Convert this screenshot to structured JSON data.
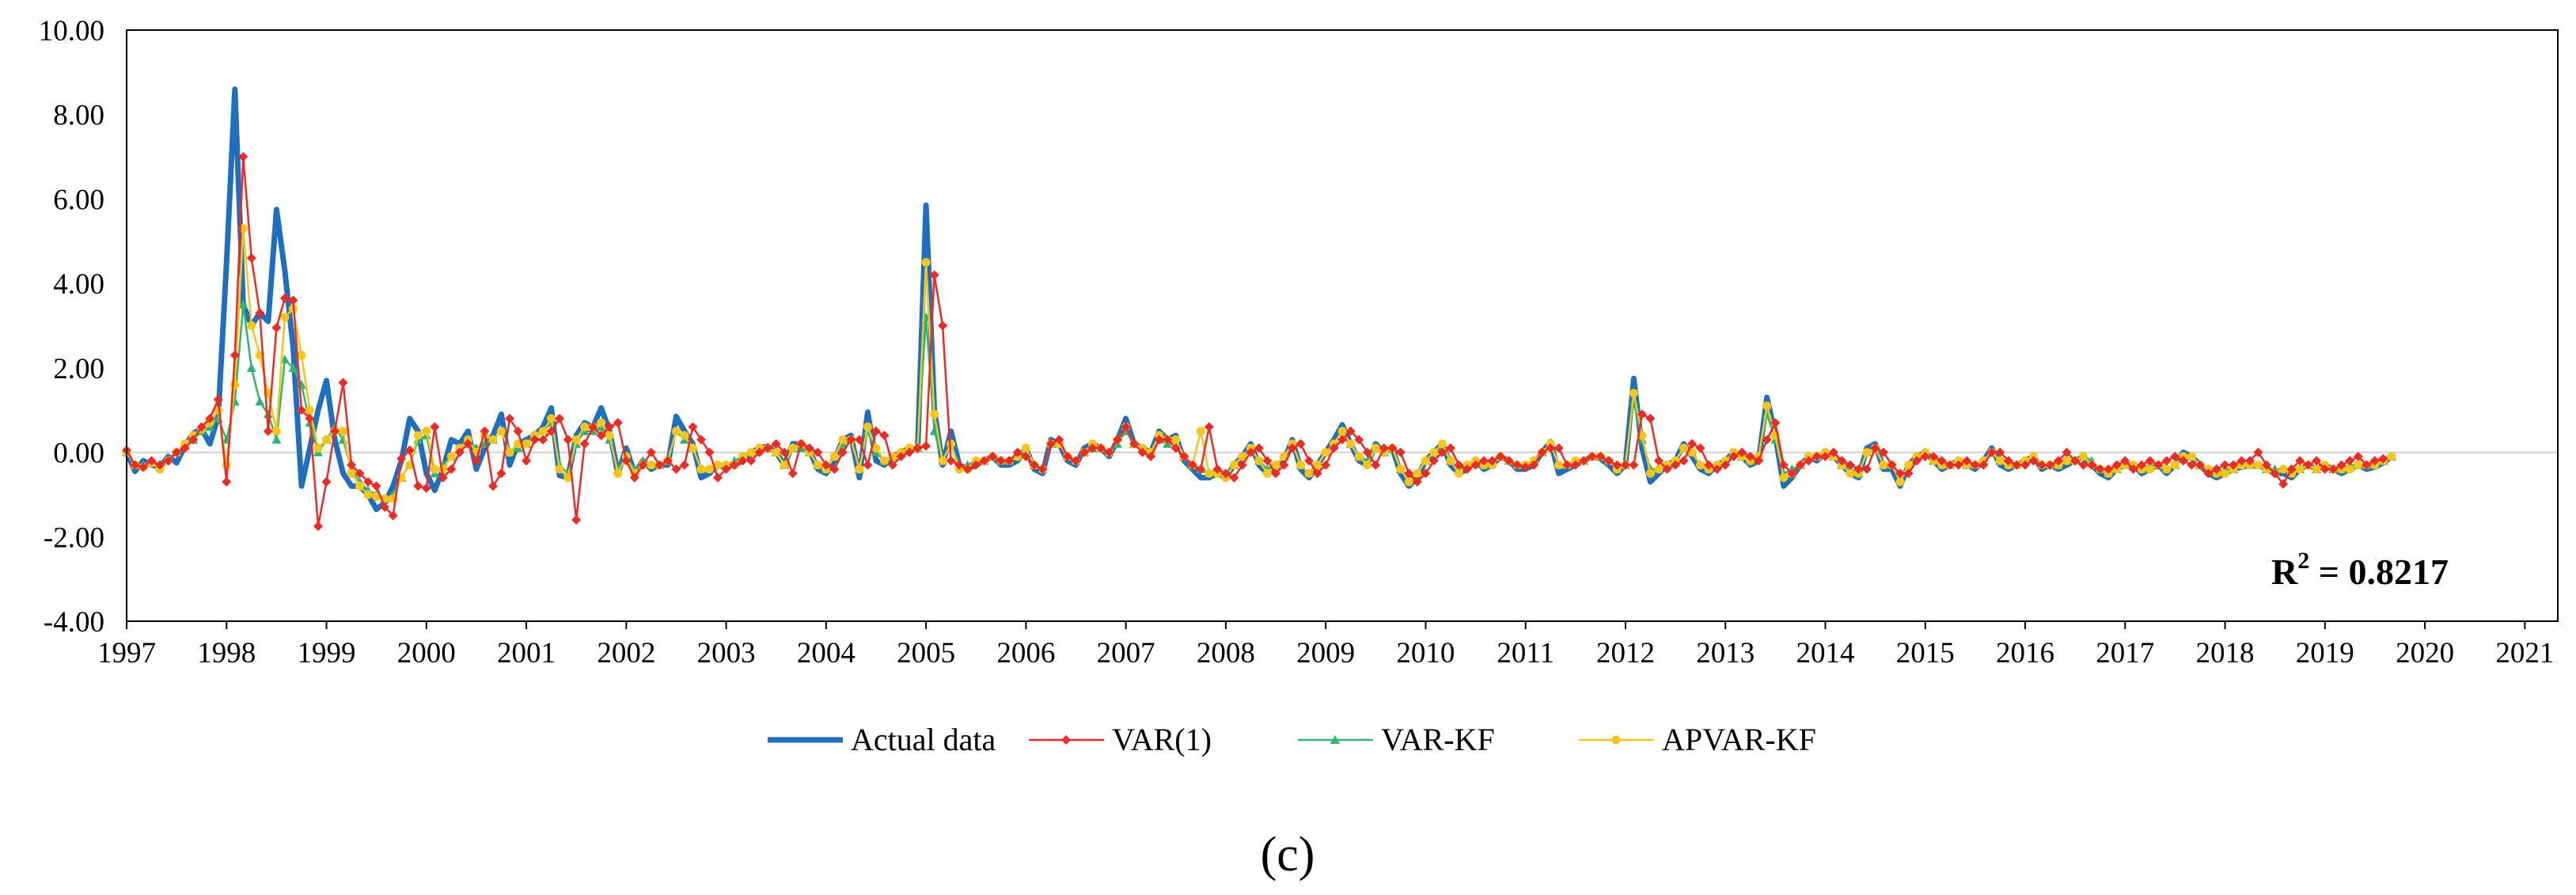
{
  "chart_data": {
    "type": "line",
    "title": "",
    "xlabel": "",
    "ylabel": "",
    "x_start": 1997.0,
    "x_step": 0.08333,
    "xlim": [
      1997.0,
      2021.33
    ],
    "ylim": [
      -4.0,
      10.0
    ],
    "y_ticks": [
      "-4.00",
      "-2.00",
      "0.00",
      "2.00",
      "4.00",
      "6.00",
      "8.00",
      "10.00"
    ],
    "x_ticks": [
      "1997",
      "1998",
      "1999",
      "2000",
      "2001",
      "2002",
      "2003",
      "2004",
      "2005",
      "2006",
      "2007",
      "2008",
      "2009",
      "2010",
      "2011",
      "2012",
      "2013",
      "2014",
      "2015",
      "2016",
      "2017",
      "2018",
      "2019",
      "2020",
      "2021"
    ],
    "annotation": {
      "prefix": "R",
      "sup": "2",
      "value": " = 0.8217"
    },
    "caption": "(c)",
    "legend_position": "bottom",
    "colors": {
      "actual": "#1f6fc0",
      "var1": "#ee2a24",
      "varkf": "#2bb673",
      "apvarkf": "#f5c518"
    },
    "series": [
      {
        "name": "Actual data",
        "key": "actual",
        "values": [
          0.0,
          -0.45,
          -0.2,
          -0.3,
          -0.35,
          -0.1,
          -0.25,
          0.15,
          0.45,
          0.55,
          0.2,
          0.85,
          4.5,
          8.6,
          3.5,
          3.0,
          3.3,
          3.1,
          5.75,
          4.3,
          2.5,
          -0.8,
          0.1,
          1.0,
          1.7,
          0.3,
          -0.5,
          -0.8,
          -0.8,
          -1.0,
          -1.35,
          -1.2,
          -0.8,
          -0.2,
          0.8,
          0.5,
          -0.5,
          -0.9,
          -0.4,
          0.3,
          0.2,
          0.5,
          -0.4,
          0.1,
          0.4,
          0.9,
          -0.3,
          0.2,
          0.3,
          0.4,
          0.6,
          1.05,
          -0.55,
          -0.6,
          0.4,
          0.7,
          0.6,
          1.05,
          0.5,
          -0.5,
          0.1,
          -0.5,
          -0.2,
          -0.4,
          -0.3,
          -0.3,
          0.85,
          0.5,
          0.2,
          -0.6,
          -0.5,
          -0.3,
          -0.35,
          -0.3,
          -0.2,
          0.0,
          0.1,
          0.15,
          0.0,
          -0.3,
          0.2,
          0.2,
          0.05,
          -0.4,
          -0.5,
          -0.2,
          0.3,
          0.4,
          -0.6,
          0.95,
          -0.2,
          -0.3,
          -0.1,
          0.0,
          0.1,
          0.05,
          5.85,
          1.0,
          -0.3,
          0.5,
          -0.3,
          -0.4,
          -0.3,
          -0.2,
          -0.1,
          -0.3,
          -0.3,
          -0.2,
          0.1,
          -0.4,
          -0.5,
          0.3,
          0.2,
          -0.2,
          -0.3,
          0.1,
          0.2,
          0.1,
          -0.1,
          0.3,
          0.8,
          0.2,
          0.1,
          0.0,
          0.5,
          0.3,
          0.4,
          -0.2,
          -0.4,
          -0.6,
          -0.6,
          -0.5,
          -0.6,
          -0.3,
          -0.1,
          0.2,
          -0.3,
          -0.5,
          -0.3,
          -0.2,
          0.3,
          -0.4,
          -0.6,
          -0.3,
          0.0,
          0.3,
          0.65,
          0.2,
          -0.2,
          -0.3,
          0.2,
          0.0,
          0.1,
          -0.5,
          -0.8,
          -0.6,
          -0.2,
          0.0,
          0.2,
          -0.3,
          -0.5,
          -0.4,
          -0.2,
          -0.4,
          -0.3,
          -0.1,
          -0.2,
          -0.4,
          -0.4,
          -0.3,
          0.0,
          0.25,
          -0.5,
          -0.4,
          -0.3,
          -0.2,
          -0.1,
          -0.15,
          -0.3,
          -0.5,
          -0.3,
          1.75,
          0.1,
          -0.7,
          -0.5,
          -0.3,
          -0.2,
          0.2,
          -0.1,
          -0.4,
          -0.5,
          -0.3,
          -0.2,
          0.0,
          -0.1,
          -0.3,
          -0.2,
          1.3,
          0.4,
          -0.8,
          -0.6,
          -0.3,
          -0.1,
          -0.2,
          0.0,
          -0.1,
          -0.3,
          -0.5,
          -0.6,
          0.1,
          0.2,
          -0.4,
          -0.4,
          -0.8,
          -0.3,
          -0.1,
          0.0,
          -0.2,
          -0.4,
          -0.3,
          -0.2,
          -0.3,
          -0.4,
          -0.2,
          0.1,
          -0.3,
          -0.4,
          -0.3,
          -0.2,
          -0.1,
          -0.4,
          -0.3,
          -0.4,
          -0.3,
          -0.2,
          -0.1,
          -0.3,
          -0.5,
          -0.6,
          -0.4,
          -0.3,
          -0.3,
          -0.5,
          -0.4,
          -0.3,
          -0.5,
          -0.3,
          0.0,
          -0.1,
          -0.3,
          -0.5,
          -0.6,
          -0.5,
          -0.4,
          -0.35,
          -0.3,
          -0.3,
          -0.4,
          -0.5,
          -0.5,
          -0.6,
          -0.4,
          -0.3,
          -0.4,
          -0.3,
          -0.4,
          -0.5,
          -0.4,
          -0.3,
          -0.4,
          -0.35,
          -0.25,
          -0.1
        ]
      },
      {
        "name": "VAR(1)",
        "key": "var1",
        "values": [
          0.05,
          -0.3,
          -0.35,
          -0.2,
          -0.3,
          -0.2,
          0.0,
          0.1,
          0.3,
          0.6,
          0.8,
          1.25,
          -0.7,
          2.3,
          7.0,
          4.6,
          3.3,
          0.5,
          2.95,
          3.65,
          3.6,
          1.0,
          0.8,
          -1.75,
          -0.7,
          0.5,
          1.65,
          -0.3,
          -0.5,
          -0.7,
          -0.8,
          -1.3,
          -1.5,
          -0.15,
          0.05,
          -0.8,
          -0.85,
          0.6,
          -0.6,
          -0.4,
          0.0,
          0.2,
          -0.2,
          0.5,
          -0.8,
          -0.5,
          0.8,
          0.5,
          -0.2,
          0.3,
          0.3,
          0.5,
          0.8,
          0.3,
          -1.6,
          0.2,
          0.6,
          0.4,
          0.6,
          0.7,
          -0.2,
          -0.6,
          -0.3,
          0.0,
          -0.3,
          -0.2,
          -0.4,
          -0.3,
          0.6,
          0.3,
          0.0,
          -0.6,
          -0.4,
          -0.3,
          -0.2,
          -0.2,
          0.0,
          0.1,
          0.2,
          0.0,
          -0.5,
          0.2,
          0.1,
          0.0,
          -0.3,
          -0.4,
          0.0,
          0.3,
          0.3,
          -0.3,
          0.5,
          0.4,
          -0.3,
          -0.1,
          0.0,
          0.1,
          0.15,
          4.2,
          3.0,
          -0.2,
          -0.3,
          -0.4,
          -0.3,
          -0.2,
          -0.1,
          -0.2,
          -0.2,
          0.0,
          -0.1,
          -0.3,
          -0.4,
          0.2,
          0.3,
          -0.1,
          -0.2,
          0.0,
          0.1,
          0.1,
          0.0,
          0.3,
          0.6,
          0.2,
          0.0,
          -0.1,
          0.3,
          0.3,
          0.1,
          -0.1,
          -0.3,
          -0.4,
          0.6,
          -0.4,
          -0.5,
          -0.6,
          -0.3,
          0.0,
          0.1,
          -0.2,
          -0.5,
          -0.3,
          0.1,
          0.2,
          -0.2,
          -0.5,
          -0.3,
          0.1,
          0.3,
          0.5,
          0.3,
          0.0,
          -0.3,
          0.1,
          0.1,
          0.0,
          -0.5,
          -0.7,
          -0.5,
          -0.2,
          0.0,
          0.1,
          -0.3,
          -0.4,
          -0.3,
          -0.2,
          -0.2,
          -0.1,
          -0.2,
          -0.3,
          -0.35,
          -0.3,
          0.0,
          0.1,
          0.1,
          -0.3,
          -0.3,
          -0.2,
          -0.1,
          -0.1,
          -0.2,
          -0.3,
          -0.3,
          -0.3,
          0.9,
          0.8,
          -0.2,
          -0.4,
          -0.3,
          -0.2,
          0.2,
          0.1,
          -0.3,
          -0.4,
          -0.3,
          -0.1,
          0.0,
          -0.1,
          -0.2,
          0.3,
          0.7,
          -0.3,
          -0.5,
          -0.3,
          -0.2,
          -0.1,
          -0.1,
          0.0,
          -0.2,
          -0.3,
          -0.4,
          -0.4,
          0.1,
          0.0,
          -0.3,
          -0.5,
          -0.5,
          -0.2,
          -0.1,
          -0.1,
          -0.2,
          -0.3,
          -0.3,
          -0.2,
          -0.3,
          -0.3,
          0.0,
          0.0,
          -0.2,
          -0.3,
          -0.3,
          -0.2,
          -0.3,
          -0.3,
          -0.2,
          0.0,
          -0.2,
          -0.3,
          -0.3,
          -0.4,
          -0.4,
          -0.3,
          -0.2,
          -0.4,
          -0.3,
          -0.2,
          -0.3,
          -0.2,
          -0.1,
          -0.2,
          -0.3,
          -0.3,
          -0.5,
          -0.4,
          -0.3,
          -0.3,
          -0.2,
          -0.2,
          0.0,
          -0.3,
          -0.5,
          -0.75,
          -0.4,
          -0.2,
          -0.3,
          -0.2,
          -0.4,
          -0.4,
          -0.3,
          -0.2,
          -0.1,
          -0.3,
          -0.2,
          -0.15
        ]
      },
      {
        "name": "VAR-KF",
        "key": "varkf",
        "values": [
          0.0,
          -0.3,
          -0.3,
          -0.25,
          -0.3,
          -0.15,
          0.0,
          0.15,
          0.3,
          0.5,
          0.6,
          0.8,
          0.3,
          1.2,
          3.5,
          2.0,
          1.2,
          0.9,
          0.3,
          2.2,
          2.0,
          1.6,
          0.7,
          0.0,
          0.3,
          0.6,
          0.3,
          -0.4,
          -0.7,
          -0.9,
          -1.0,
          -1.1,
          -1.0,
          -0.6,
          -0.3,
          0.3,
          0.4,
          -0.5,
          -0.3,
          -0.1,
          0.1,
          0.3,
          0.1,
          0.2,
          0.3,
          0.5,
          0.0,
          0.1,
          0.2,
          0.4,
          0.5,
          0.7,
          -0.3,
          -0.5,
          0.2,
          0.5,
          0.5,
          0.6,
          0.3,
          -0.4,
          -0.1,
          -0.4,
          -0.2,
          -0.3,
          -0.3,
          -0.2,
          0.5,
          0.3,
          0.1,
          -0.4,
          -0.4,
          -0.3,
          -0.3,
          -0.2,
          -0.1,
          0.0,
          0.1,
          0.1,
          0.0,
          -0.3,
          0.1,
          0.1,
          0.0,
          -0.3,
          -0.4,
          -0.1,
          0.2,
          0.3,
          -0.4,
          0.5,
          0.0,
          -0.2,
          -0.1,
          0.0,
          0.1,
          0.1,
          3.2,
          0.5,
          -0.2,
          0.2,
          -0.3,
          -0.3,
          -0.2,
          -0.2,
          -0.1,
          -0.2,
          -0.2,
          -0.1,
          0.0,
          -0.3,
          -0.4,
          0.2,
          0.2,
          -0.1,
          -0.2,
          0.0,
          0.1,
          0.1,
          0.0,
          0.2,
          0.5,
          0.2,
          0.1,
          0.0,
          0.3,
          0.2,
          0.3,
          -0.1,
          -0.3,
          -0.4,
          -0.5,
          -0.4,
          -0.5,
          -0.3,
          -0.1,
          0.1,
          -0.2,
          -0.4,
          -0.3,
          -0.1,
          0.2,
          -0.3,
          -0.5,
          -0.3,
          0.0,
          0.2,
          0.5,
          0.2,
          -0.1,
          -0.2,
          0.1,
          0.0,
          0.1,
          -0.4,
          -0.6,
          -0.5,
          -0.2,
          0.0,
          0.1,
          -0.2,
          -0.4,
          -0.3,
          -0.2,
          -0.3,
          -0.2,
          -0.1,
          -0.2,
          -0.3,
          -0.3,
          -0.2,
          0.0,
          0.2,
          -0.3,
          -0.3,
          -0.2,
          -0.2,
          -0.1,
          -0.1,
          -0.2,
          -0.4,
          -0.3,
          1.2,
          0.3,
          -0.4,
          -0.4,
          -0.3,
          -0.2,
          0.1,
          0.0,
          -0.3,
          -0.4,
          -0.3,
          -0.2,
          0.0,
          -0.1,
          -0.2,
          -0.1,
          0.9,
          0.3,
          -0.5,
          -0.4,
          -0.3,
          -0.1,
          -0.1,
          0.0,
          -0.1,
          -0.3,
          -0.4,
          -0.5,
          0.0,
          0.1,
          -0.3,
          -0.3,
          -0.6,
          -0.3,
          -0.1,
          0.0,
          -0.2,
          -0.3,
          -0.3,
          -0.2,
          -0.3,
          -0.3,
          -0.2,
          0.0,
          -0.2,
          -0.3,
          -0.3,
          -0.2,
          -0.1,
          -0.3,
          -0.3,
          -0.3,
          -0.2,
          -0.2,
          -0.1,
          -0.2,
          -0.4,
          -0.5,
          -0.4,
          -0.3,
          -0.3,
          -0.4,
          -0.3,
          -0.3,
          -0.4,
          -0.3,
          -0.1,
          -0.1,
          -0.3,
          -0.4,
          -0.5,
          -0.4,
          -0.4,
          -0.3,
          -0.3,
          -0.3,
          -0.4,
          -0.4,
          -0.4,
          -0.5,
          -0.4,
          -0.3,
          -0.4,
          -0.3,
          -0.4,
          -0.4,
          -0.3,
          -0.3,
          -0.3,
          -0.3,
          -0.2,
          -0.1
        ]
      },
      {
        "name": "APVAR-KF",
        "key": "apvarkf",
        "values": [
          0.0,
          -0.3,
          -0.35,
          -0.25,
          -0.4,
          -0.2,
          0.0,
          0.2,
          0.4,
          0.55,
          0.7,
          1.0,
          -0.3,
          1.6,
          5.3,
          3.0,
          2.3,
          1.4,
          0.5,
          3.2,
          3.4,
          2.3,
          1.0,
          0.1,
          0.3,
          0.5,
          0.5,
          -0.5,
          -0.8,
          -1.0,
          -1.05,
          -1.1,
          -1.1,
          -0.6,
          -0.3,
          0.4,
          0.5,
          -0.4,
          -0.4,
          -0.1,
          0.1,
          0.3,
          0.0,
          0.4,
          0.3,
          0.5,
          0.0,
          0.2,
          0.2,
          0.4,
          0.5,
          0.8,
          -0.4,
          -0.6,
          0.3,
          0.6,
          0.6,
          0.7,
          0.4,
          -0.5,
          -0.1,
          -0.5,
          -0.3,
          -0.3,
          -0.3,
          -0.2,
          0.5,
          0.4,
          0.1,
          -0.4,
          -0.4,
          -0.3,
          -0.3,
          -0.3,
          -0.1,
          0.0,
          0.1,
          0.1,
          0.0,
          -0.3,
          0.1,
          0.2,
          0.0,
          -0.3,
          -0.4,
          -0.1,
          0.3,
          0.3,
          -0.4,
          0.6,
          0.1,
          -0.2,
          -0.1,
          0.0,
          0.1,
          0.1,
          4.5,
          0.9,
          -0.2,
          0.2,
          -0.4,
          -0.4,
          -0.2,
          -0.2,
          -0.1,
          -0.2,
          -0.2,
          -0.1,
          0.1,
          -0.3,
          -0.4,
          0.2,
          0.2,
          -0.1,
          -0.2,
          0.0,
          0.2,
          0.1,
          0.0,
          0.3,
          0.6,
          0.2,
          0.1,
          0.0,
          0.4,
          0.3,
          0.3,
          -0.1,
          -0.3,
          0.5,
          -0.5,
          -0.5,
          -0.6,
          -0.3,
          -0.1,
          0.1,
          -0.2,
          -0.5,
          -0.3,
          -0.1,
          0.2,
          -0.3,
          -0.5,
          -0.3,
          0.0,
          0.2,
          0.5,
          0.2,
          -0.1,
          -0.3,
          0.1,
          0.0,
          0.1,
          -0.4,
          -0.7,
          -0.5,
          -0.2,
          0.0,
          0.2,
          -0.2,
          -0.5,
          -0.3,
          -0.2,
          -0.3,
          -0.3,
          -0.1,
          -0.2,
          -0.3,
          -0.3,
          -0.2,
          0.0,
          0.2,
          -0.3,
          -0.3,
          -0.2,
          -0.2,
          -0.1,
          -0.1,
          -0.2,
          -0.4,
          -0.3,
          1.4,
          0.4,
          -0.5,
          -0.4,
          -0.3,
          -0.2,
          0.1,
          0.0,
          -0.3,
          -0.4,
          -0.3,
          -0.2,
          0.0,
          -0.1,
          -0.2,
          -0.1,
          1.1,
          0.4,
          -0.6,
          -0.5,
          -0.3,
          -0.1,
          -0.1,
          0.0,
          -0.1,
          -0.3,
          -0.5,
          -0.5,
          0.0,
          0.1,
          -0.3,
          -0.3,
          -0.7,
          -0.3,
          -0.1,
          0.0,
          -0.2,
          -0.3,
          -0.3,
          -0.2,
          -0.3,
          -0.3,
          -0.2,
          0.0,
          -0.2,
          -0.3,
          -0.3,
          -0.2,
          -0.1,
          -0.3,
          -0.3,
          -0.3,
          -0.2,
          -0.2,
          -0.1,
          -0.3,
          -0.4,
          -0.5,
          -0.4,
          -0.3,
          -0.3,
          -0.4,
          -0.4,
          -0.3,
          -0.4,
          -0.3,
          -0.1,
          -0.1,
          -0.3,
          -0.4,
          -0.5,
          -0.5,
          -0.4,
          -0.3,
          -0.3,
          -0.3,
          -0.4,
          -0.5,
          -0.4,
          -0.5,
          -0.4,
          -0.3,
          -0.4,
          -0.3,
          -0.4,
          -0.4,
          -0.4,
          -0.3,
          -0.3,
          -0.3,
          -0.2,
          -0.1
        ]
      }
    ]
  }
}
